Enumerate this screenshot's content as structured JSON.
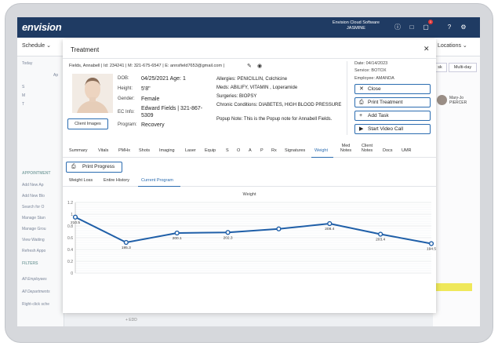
{
  "app": {
    "logo": "envision",
    "cloud_title": "Envision Cloud Software",
    "cloud_user": "JASMINE",
    "notification_count": "1",
    "schedule_label": "Schedule ⌄",
    "locations_label": "Locations ⌄",
    "icons": [
      "headset-icon",
      "chat-icon",
      "notification-icon",
      "help-icon",
      "gear-icon"
    ]
  },
  "background": {
    "left_items": [
      "Today",
      "Ap",
      "S",
      "M",
      "T",
      "APPOINTMENT",
      "Add New Ap",
      "Add New Blo",
      "Search for O",
      "Manage Stan",
      "Manage Grou",
      "View Waiting",
      "Refresh Appo",
      "FILTERS",
      "All Employees",
      "All Departments",
      "Right-click sche"
    ],
    "right_buttons": [
      "sk",
      "Multi-day"
    ],
    "right_person": "Mary-Jo PIERCER",
    "under_label": "+ EDD"
  },
  "modal": {
    "title": "Treatment",
    "patient_line": "Fields, Annabell | Id: 234241 | M: 321-675-6547 | E: annsfield7653@gmail.com |",
    "client_images_label": "Client Images",
    "fields": {
      "dob_label": "DOB:",
      "dob_value": "04/25/2021 Age: 1",
      "height_label": "Height:",
      "height_value": "5'8\"",
      "gender_label": "Gender:",
      "gender_value": "Female",
      "ec_label": "EC Info:",
      "ec_value": "Edward Fields | 321-867-5309",
      "program_label": "Program:",
      "program_value": "Recovery"
    },
    "medical": {
      "allergies_label": "Allergies:",
      "allergies_value": "PENICILLIN, Colchicine",
      "meds_label": "Meds:",
      "meds_value": "ABILIFY, VITAMIN , Loperamide",
      "surgeries_label": "Surgeries:",
      "surgeries_value": "BIOPSY",
      "chronic_label": "Chronic Conditions:",
      "chronic_value": "DIABETES, HIGH BLOOD PRESSURE",
      "popup_label": "Popup Note:",
      "popup_value": "This is the Popup note for Annabell Fields."
    },
    "info": {
      "date": "Date: 04/14/2023",
      "service": "Service: BOTOX",
      "employee": "Employee: AMANDA"
    },
    "buttons": {
      "close": "Close",
      "print_treatment": "Print Treatment",
      "add_task": "Add Task",
      "video_call": "Start Video Call",
      "print_progress": "Print Progress"
    },
    "tabs": [
      "Summary",
      "Vitals",
      "PMHx",
      "Shots",
      "Imaging",
      "Laser",
      "Equip",
      "S",
      "O",
      "A",
      "P",
      "Rx",
      "Signatures",
      "Weight",
      "Med Notes",
      "Client Notes",
      "Docs",
      "UMR"
    ],
    "active_tab": "Weight",
    "subtabs": [
      "Weight Loss",
      "Entire History",
      "Current Program"
    ],
    "active_subtab": "Current Program"
  },
  "chart_data": {
    "type": "line",
    "title": "Weight",
    "xlabel": "",
    "ylabel": "",
    "y_ticks": [
      "0",
      "0.2",
      "0.4",
      "0.6",
      "0.8",
      "1",
      "1.2"
    ],
    "ylim": [
      0,
      1.2
    ],
    "grid": true,
    "series": [
      {
        "color": "#1f5fa8",
        "x": [
          0,
          1,
          2,
          3,
          4,
          5,
          6,
          7
        ],
        "values": [
          0.95,
          0.52,
          0.68,
          0.69,
          0.75,
          0.84,
          0.66,
          0.5
        ],
        "labels": [
          "210.5",
          "195.3",
          "200.1",
          "202.3",
          "",
          "208.4",
          "203.4",
          "194.5"
        ]
      }
    ]
  }
}
